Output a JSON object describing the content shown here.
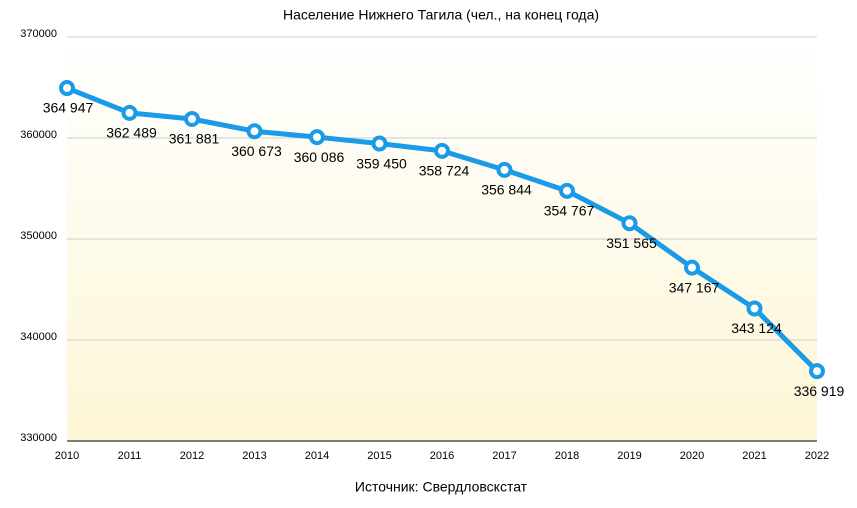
{
  "chart_data": {
    "type": "line",
    "title": "Население Нижнего Тагила (чел., на конец года)",
    "source": "Источник: Свердловскстат",
    "categories": [
      "2010",
      "2011",
      "2012",
      "2013",
      "2014",
      "2015",
      "2016",
      "2017",
      "2018",
      "2019",
      "2020",
      "2021",
      "2022"
    ],
    "series": [
      {
        "name": "Население",
        "color": "#1a9be8",
        "values": [
          364947,
          362489,
          361881,
          360673,
          360086,
          359450,
          358724,
          356844,
          354767,
          351565,
          347167,
          343124,
          336919
        ],
        "value_labels": [
          "364 947",
          "362 489",
          "361 881",
          "360 673",
          "360 086",
          "359 450",
          "358 724",
          "356 844",
          "354 767",
          "351 565",
          "347 167",
          "343 124",
          "336 919"
        ]
      }
    ],
    "ylim": [
      330000,
      370000
    ],
    "yticks": [
      330000,
      340000,
      350000,
      360000,
      370000
    ],
    "grid": true
  }
}
